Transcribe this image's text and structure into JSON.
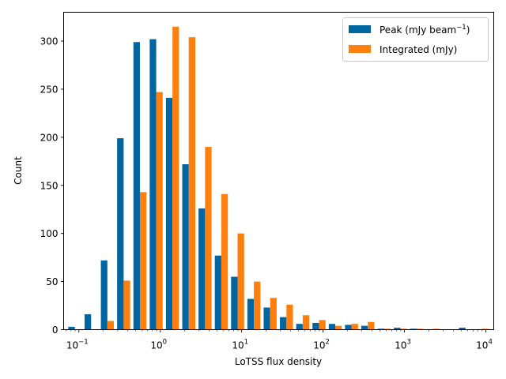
{
  "chart_data": {
    "type": "bar",
    "xlabel": "LoTSS flux density",
    "ylabel": "Count",
    "x_scale": "log",
    "xlim": [
      0.065,
      12500
    ],
    "ylim": [
      0,
      330
    ],
    "legend_position": "top-right",
    "grid": false,
    "x_ticks": [
      {
        "value": 0.1,
        "base": "10",
        "exp": "−1"
      },
      {
        "value": 1,
        "base": "10",
        "exp": "0"
      },
      {
        "value": 10,
        "base": "10",
        "exp": "1"
      },
      {
        "value": 100,
        "base": "10",
        "exp": "2"
      },
      {
        "value": 1000,
        "base": "10",
        "exp": "3"
      },
      {
        "value": 10000,
        "base": "10",
        "exp": "4"
      }
    ],
    "y_ticks": [
      0,
      50,
      100,
      150,
      200,
      250,
      300
    ],
    "bin_edges_log10": [
      -1.15,
      -0.95,
      -0.75,
      -0.55,
      -0.35,
      -0.15,
      0.05,
      0.25,
      0.45,
      0.65,
      0.85,
      1.05,
      1.25,
      1.45,
      1.65,
      1.85,
      2.05,
      2.25,
      2.45,
      2.65,
      2.85,
      3.05,
      3.25,
      3.45,
      3.65,
      3.85,
      4.05
    ],
    "series": [
      {
        "name": "Peak (mJy beam",
        "name_sup": "−1",
        "name_after": ")",
        "color": "#0066a2",
        "values": [
          3,
          16,
          72,
          199,
          299,
          302,
          241,
          172,
          126,
          77,
          55,
          32,
          23,
          13,
          6,
          7,
          6,
          5,
          4,
          1,
          2,
          1,
          0,
          0,
          2,
          0
        ]
      },
      {
        "name": "Integrated (mJy)",
        "color": "#ff7f0e",
        "values": [
          0,
          0,
          9,
          51,
          143,
          247,
          315,
          304,
          190,
          141,
          100,
          50,
          33,
          26,
          15,
          10,
          4,
          6,
          8,
          1,
          1,
          1,
          1,
          0,
          0,
          1
        ]
      }
    ]
  }
}
